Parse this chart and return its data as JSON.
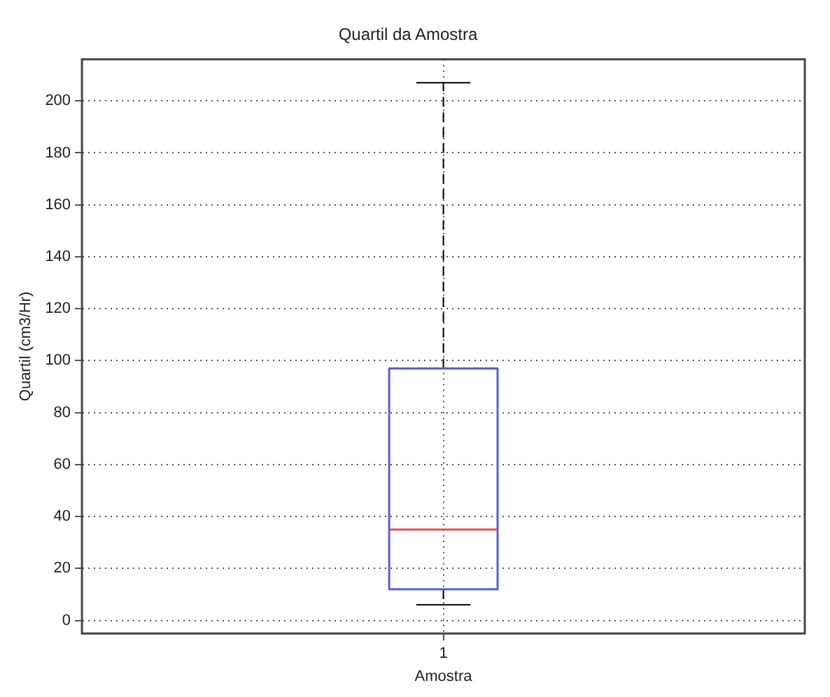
{
  "chart_data": {
    "type": "box",
    "title": "Quartil da Amostra",
    "xlabel": "Amostra",
    "ylabel": "Quartil (cm3/Hr)",
    "categories": [
      "1"
    ],
    "boxes": [
      {
        "low": 6,
        "q1": 12,
        "median": 35,
        "q3": 97,
        "high": 207
      }
    ],
    "color": "#5b5bd6",
    "ylim": [
      -5,
      216
    ],
    "yticks": [
      0,
      20,
      40,
      60,
      80,
      100,
      120,
      140,
      160,
      180,
      200
    ],
    "grid": true
  }
}
